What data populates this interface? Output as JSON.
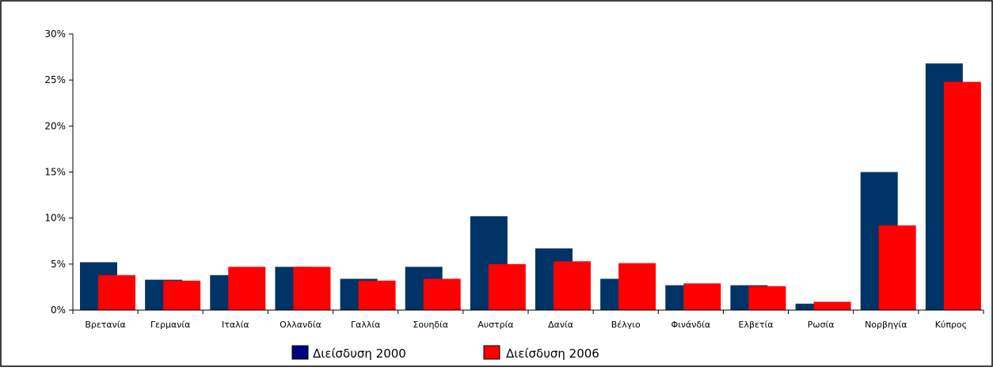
{
  "chart_data": {
    "type": "bar",
    "title": "",
    "xlabel": "",
    "ylabel": "",
    "categories": [
      "Βρετανία",
      "Γερμανία",
      "Ιταλία",
      "Ολλανδία",
      "Γαλλία",
      "Σουηδία",
      "Αυστρία",
      "Δανία",
      "Βέλγιο",
      "Φινάνδία",
      "Ελβετία",
      "Ρωσία",
      "Νορβηγία",
      "Κύπρος"
    ],
    "series": [
      {
        "name": "Διείσδυση 2000",
        "color": "#003366",
        "values": [
          5.2,
          3.3,
          3.8,
          4.7,
          3.4,
          4.7,
          10.2,
          6.7,
          3.4,
          2.7,
          2.7,
          0.7,
          15.0,
          26.8
        ]
      },
      {
        "name": "Διείσδυση 2006",
        "color": "#ff0000",
        "values": [
          3.8,
          3.2,
          4.7,
          4.7,
          3.2,
          3.4,
          5.0,
          5.3,
          5.1,
          2.9,
          2.6,
          0.9,
          9.2,
          24.8
        ]
      }
    ],
    "ylim": [
      0,
      30
    ],
    "yticks": [
      "0%",
      "5%",
      "10%",
      "15%",
      "20%",
      "25%",
      "30%"
    ],
    "grid": false,
    "legend_position": "bottom"
  }
}
